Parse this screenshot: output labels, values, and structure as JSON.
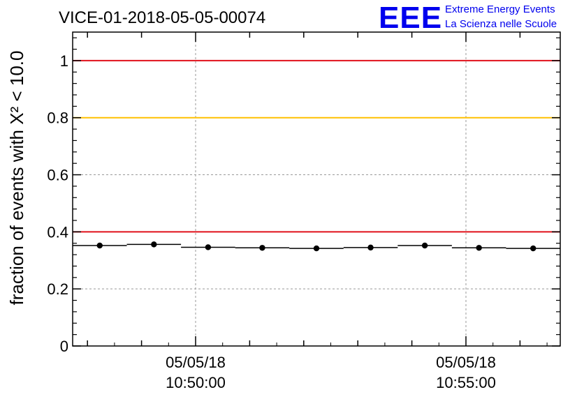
{
  "chart_data": {
    "type": "scatter",
    "title": "VICE-01-2018-05-05-00074",
    "ylabel": "fraction of events with X² < 10.0",
    "ylim": [
      0,
      1.1
    ],
    "y_ticks": [
      "0",
      "0.2",
      "0.4",
      "0.6",
      "0.8",
      "1"
    ],
    "x_tick_labels": [
      {
        "date": "05/05/18",
        "time": "10:50:00"
      },
      {
        "date": "05/05/18",
        "time": "10:55:00"
      }
    ],
    "grid": true,
    "series": [
      {
        "values": [
          0.352,
          0.356,
          0.346,
          0.344,
          0.342,
          0.345,
          0.352,
          0.344,
          0.342
        ]
      }
    ],
    "reference_lines": [
      {
        "y": 1.0,
        "color": "#e0101a"
      },
      {
        "y": 0.8,
        "color": "#ffc000"
      },
      {
        "y": 0.4,
        "color": "#e0101a"
      }
    ]
  },
  "logo": {
    "mark": "EEE",
    "line1": "Extreme Energy Events",
    "line2": "La Scienza nelle Scuole"
  }
}
